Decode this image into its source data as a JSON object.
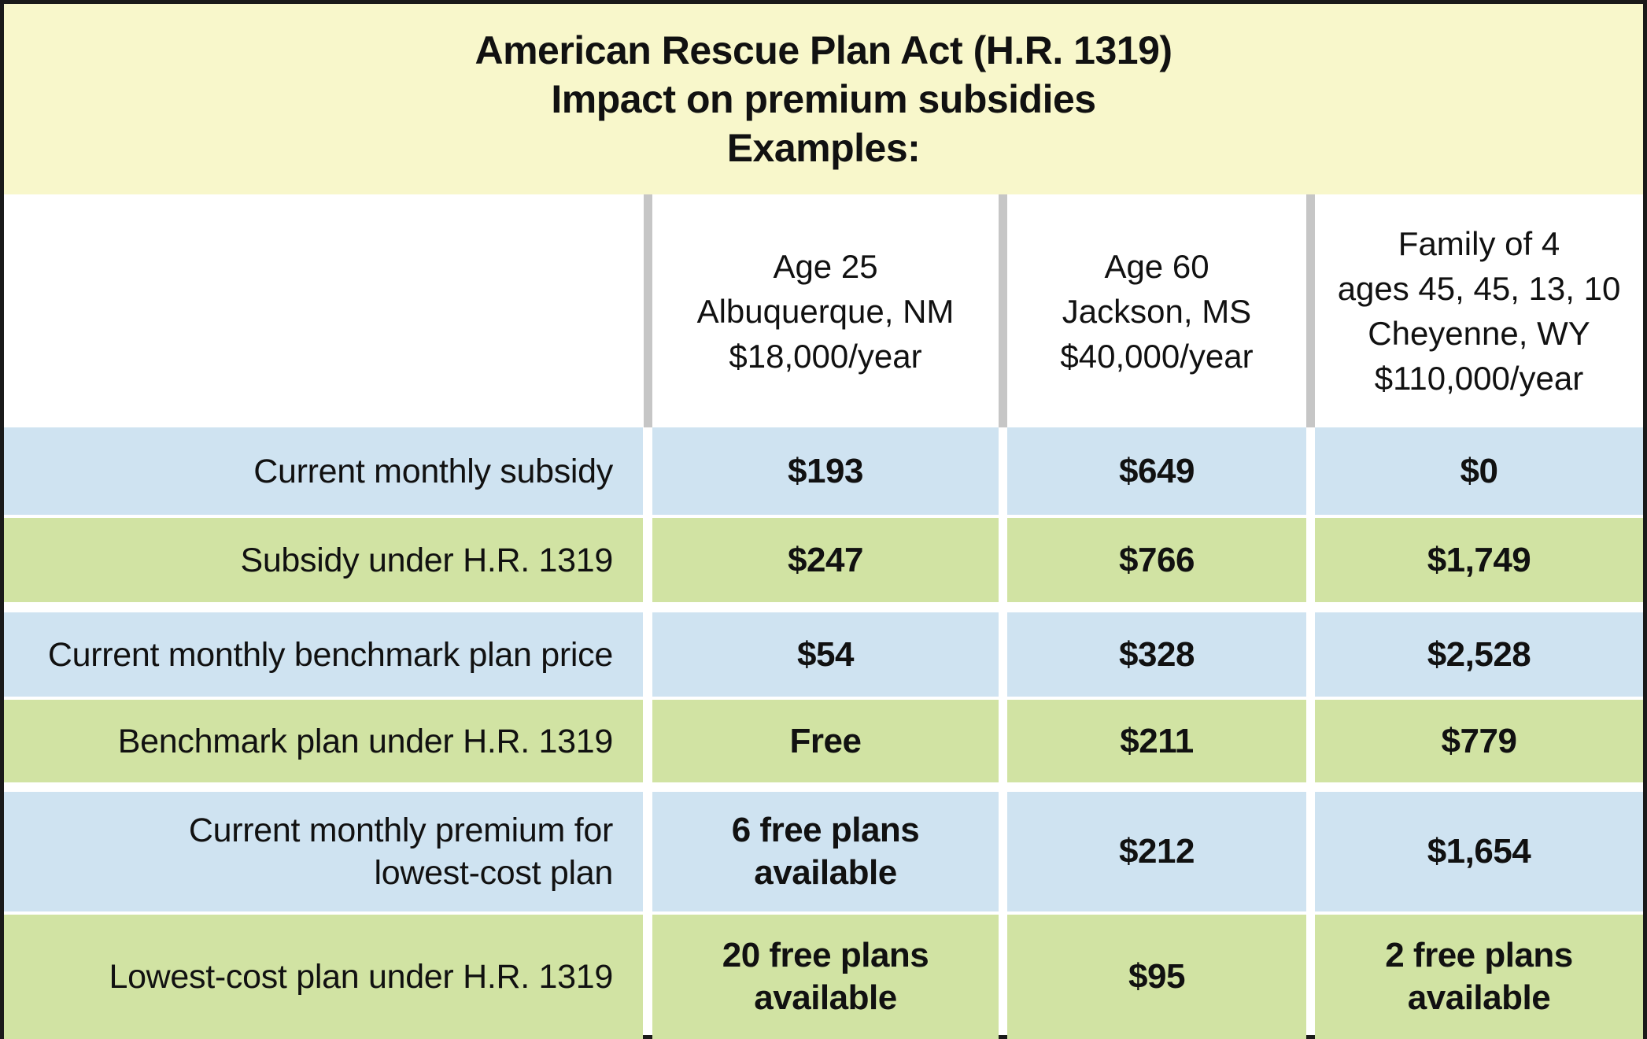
{
  "title": {
    "line1": "American Rescue Plan Act (H.R. 1319)",
    "line2": "Impact on premium subsidies",
    "line3": "Examples:"
  },
  "columns": [
    {
      "lines": [
        "Age 25",
        "Albuquerque, NM",
        "$18,000/year"
      ]
    },
    {
      "lines": [
        "Age 60",
        "Jackson, MS",
        "$40,000/year"
      ]
    },
    {
      "lines": [
        "Family of 4",
        "ages 45, 45, 13, 10",
        "Cheyenne, WY",
        "$110,000/year"
      ]
    }
  ],
  "rows": [
    {
      "label": [
        "Current monthly subsidy"
      ],
      "values": [
        [
          "$193"
        ],
        [
          "$649"
        ],
        [
          "$0"
        ]
      ]
    },
    {
      "label": [
        "Subsidy under H.R. 1319"
      ],
      "values": [
        [
          "$247"
        ],
        [
          "$766"
        ],
        [
          "$1,749"
        ]
      ]
    },
    {
      "label": [
        "Current monthly benchmark plan price"
      ],
      "values": [
        [
          "$54"
        ],
        [
          "$328"
        ],
        [
          "$2,528"
        ]
      ]
    },
    {
      "label": [
        "Benchmark plan under H.R. 1319"
      ],
      "values": [
        [
          "Free"
        ],
        [
          "$211"
        ],
        [
          "$779"
        ]
      ]
    },
    {
      "label": [
        "Current monthly premium for",
        "lowest-cost plan"
      ],
      "values": [
        [
          "6 free plans",
          "available"
        ],
        [
          "$212"
        ],
        [
          "$1,654"
        ]
      ]
    },
    {
      "label": [
        "Lowest-cost plan under H.R. 1319"
      ],
      "values": [
        [
          "20 free plans",
          "available"
        ],
        [
          "$95"
        ],
        [
          "2 free plans",
          "available"
        ]
      ]
    }
  ]
}
